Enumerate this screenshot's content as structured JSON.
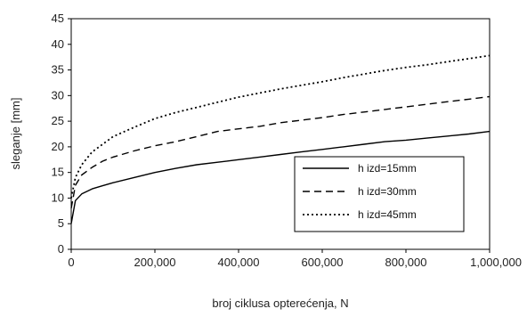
{
  "chart_data": {
    "type": "line",
    "xlabel": "broj ciklusa opterećenja, N",
    "ylabel": "slеganje [mm]",
    "xlim": [
      0,
      1000000
    ],
    "ylim": [
      0,
      45
    ],
    "x_ticks": [
      "0",
      "200,000",
      "400,000",
      "600,000",
      "800,000",
      "1,000,000"
    ],
    "y_ticks": [
      "0",
      "5",
      "10",
      "15",
      "20",
      "25",
      "30",
      "35",
      "40",
      "45"
    ],
    "grid": false,
    "legend_position": "bottom-right",
    "series": [
      {
        "name": "h izd=15mm",
        "style": "solid",
        "color": "#000000",
        "x": [
          0,
          10000,
          25000,
          50000,
          75000,
          100000,
          150000,
          200000,
          250000,
          300000,
          350000,
          400000,
          450000,
          500000,
          550000,
          600000,
          650000,
          700000,
          750000,
          800000,
          850000,
          900000,
          950000,
          1000000
        ],
        "y": [
          5,
          9.5,
          10.8,
          11.8,
          12.4,
          13,
          14,
          15,
          15.8,
          16.5,
          17,
          17.5,
          18,
          18.5,
          19,
          19.5,
          20,
          20.5,
          21,
          21.3,
          21.7,
          22.1,
          22.5,
          23
        ]
      },
      {
        "name": "h izd=30mm",
        "style": "dashed",
        "color": "#000000",
        "x": [
          0,
          10000,
          25000,
          50000,
          75000,
          100000,
          150000,
          200000,
          250000,
          300000,
          350000,
          400000,
          450000,
          500000,
          550000,
          600000,
          650000,
          700000,
          750000,
          800000,
          850000,
          900000,
          950000,
          1000000
        ],
        "y": [
          8,
          12.5,
          14.5,
          16,
          17.2,
          18,
          19.2,
          20.2,
          21,
          22,
          23,
          23.5,
          24,
          24.7,
          25.2,
          25.7,
          26.3,
          26.8,
          27.3,
          27.8,
          28.3,
          28.8,
          29.3,
          29.8
        ]
      },
      {
        "name": "h izd=45mm",
        "style": "dotted",
        "color": "#000000",
        "x": [
          0,
          10000,
          25000,
          50000,
          75000,
          100000,
          150000,
          200000,
          250000,
          300000,
          350000,
          400000,
          450000,
          500000,
          550000,
          600000,
          650000,
          700000,
          750000,
          800000,
          850000,
          900000,
          950000,
          1000000
        ],
        "y": [
          10,
          14,
          16.5,
          19,
          20.5,
          22,
          23.8,
          25.5,
          26.7,
          27.7,
          28.7,
          29.7,
          30.5,
          31.3,
          32,
          32.7,
          33.5,
          34.2,
          34.9,
          35.5,
          36,
          36.6,
          37.2,
          37.8
        ]
      }
    ]
  }
}
